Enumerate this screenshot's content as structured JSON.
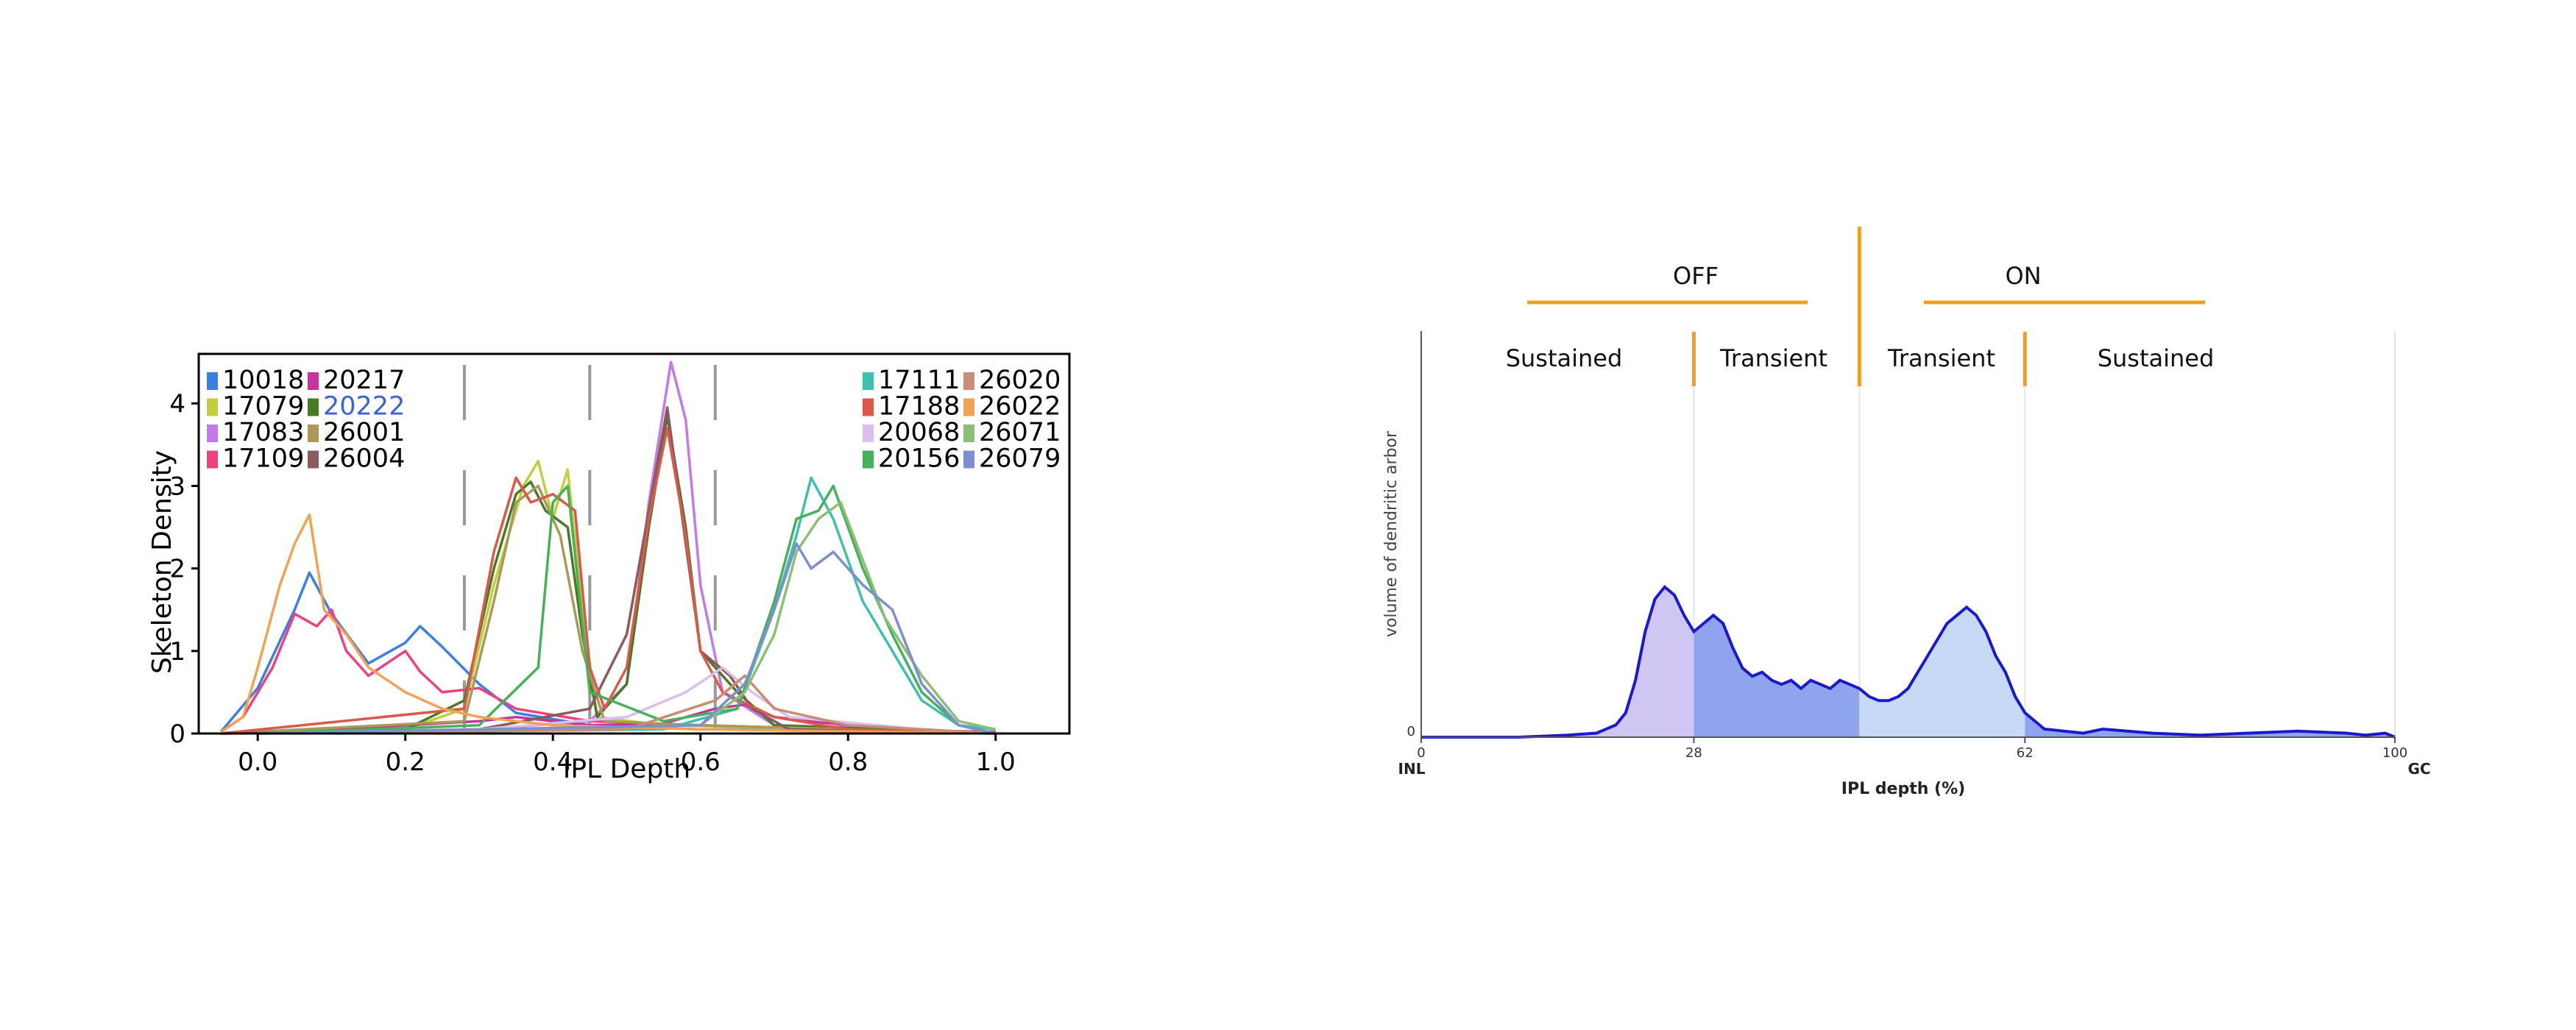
{
  "chart_data": [
    {
      "type": "line",
      "title": "",
      "xlabel": "IPL Depth",
      "ylabel": "Skeleton Density",
      "xlim": [
        -0.08,
        1.1
      ],
      "ylim": [
        0,
        4.6
      ],
      "xticks": [
        0.0,
        0.2,
        0.4,
        0.6,
        0.8,
        1.0
      ],
      "xtick_labels": [
        "0.0",
        "0.2",
        "0.4",
        "0.6",
        "0.8",
        "1.0"
      ],
      "yticks": [
        0,
        1,
        2,
        3,
        4
      ],
      "ytick_labels": [
        "0",
        "1",
        "2",
        "3",
        "4"
      ],
      "grid": false,
      "dashed_boundaries": [
        0.28,
        0.45,
        0.62
      ],
      "legend_left": [
        "10018",
        "17079",
        "17083",
        "17109",
        "20217",
        "20222",
        "26001",
        "26004"
      ],
      "legend_right": [
        "17111",
        "17188",
        "20068",
        "20156",
        "26020",
        "26022",
        "26071",
        "26079"
      ],
      "highlighted_entry": "20222",
      "series": [
        {
          "name": "10018",
          "color": "#3b7fe0",
          "values": [
            [
              -0.05,
              0.02
            ],
            [
              0.0,
              0.55
            ],
            [
              0.05,
              1.5
            ],
            [
              0.07,
              1.95
            ],
            [
              0.1,
              1.45
            ],
            [
              0.15,
              0.85
            ],
            [
              0.2,
              1.1
            ],
            [
              0.22,
              1.3
            ],
            [
              0.25,
              1.05
            ],
            [
              0.3,
              0.6
            ],
            [
              0.35,
              0.25
            ],
            [
              0.45,
              0.1
            ],
            [
              0.6,
              0.05
            ],
            [
              0.8,
              0.05
            ],
            [
              1.0,
              0.02
            ]
          ]
        },
        {
          "name": "17079",
          "color": "#c3cf3a",
          "values": [
            [
              -0.05,
              0
            ],
            [
              0.2,
              0.05
            ],
            [
              0.28,
              0.3
            ],
            [
              0.32,
              1.8
            ],
            [
              0.36,
              3.0
            ],
            [
              0.38,
              3.3
            ],
            [
              0.4,
              2.6
            ],
            [
              0.42,
              3.2
            ],
            [
              0.44,
              1.5
            ],
            [
              0.46,
              0.2
            ],
            [
              0.55,
              0.1
            ],
            [
              0.8,
              0.05
            ],
            [
              1.0,
              0
            ]
          ]
        },
        {
          "name": "17083",
          "color": "#c37ae8",
          "values": [
            [
              -0.05,
              0
            ],
            [
              0.3,
              0.05
            ],
            [
              0.45,
              0.15
            ],
            [
              0.5,
              0.6
            ],
            [
              0.53,
              2.8
            ],
            [
              0.56,
              4.5
            ],
            [
              0.58,
              3.8
            ],
            [
              0.6,
              1.8
            ],
            [
              0.63,
              0.5
            ],
            [
              0.7,
              0.1
            ],
            [
              0.9,
              0.05
            ],
            [
              1.0,
              0
            ]
          ]
        },
        {
          "name": "17109",
          "color": "#f0417f",
          "values": [
            [
              -0.05,
              0.02
            ],
            [
              -0.02,
              0.2
            ],
            [
              0.02,
              0.8
            ],
            [
              0.05,
              1.45
            ],
            [
              0.08,
              1.3
            ],
            [
              0.1,
              1.5
            ],
            [
              0.12,
              1.0
            ],
            [
              0.15,
              0.7
            ],
            [
              0.2,
              1.0
            ],
            [
              0.22,
              0.75
            ],
            [
              0.25,
              0.5
            ],
            [
              0.3,
              0.55
            ],
            [
              0.35,
              0.3
            ],
            [
              0.45,
              0.15
            ],
            [
              0.6,
              0.1
            ],
            [
              0.8,
              0.05
            ],
            [
              1.0,
              0.02
            ]
          ]
        },
        {
          "name": "20217",
          "color": "#c4369a",
          "values": [
            [
              0.0,
              0
            ],
            [
              0.3,
              0.15
            ],
            [
              0.35,
              0.2
            ],
            [
              0.45,
              0.1
            ],
            [
              0.55,
              0.12
            ],
            [
              0.62,
              0.3
            ],
            [
              0.66,
              0.35
            ],
            [
              0.7,
              0.2
            ],
            [
              0.8,
              0.1
            ],
            [
              1.0,
              0
            ]
          ]
        },
        {
          "name": "20222",
          "color": "#4a7a26",
          "values": [
            [
              -0.05,
              0
            ],
            [
              0.2,
              0.05
            ],
            [
              0.28,
              0.4
            ],
            [
              0.32,
              2.0
            ],
            [
              0.35,
              2.9
            ],
            [
              0.37,
              3.05
            ],
            [
              0.39,
              2.7
            ],
            [
              0.42,
              2.5
            ],
            [
              0.44,
              1.2
            ],
            [
              0.46,
              0.2
            ],
            [
              0.5,
              0.6
            ],
            [
              0.53,
              2.5
            ],
            [
              0.555,
              3.85
            ],
            [
              0.58,
              2.5
            ],
            [
              0.6,
              1.0
            ],
            [
              0.65,
              0.5
            ],
            [
              0.7,
              0.1
            ],
            [
              1.0,
              0
            ]
          ]
        },
        {
          "name": "26001",
          "color": "#a99a5a",
          "values": [
            [
              -0.05,
              0
            ],
            [
              0.28,
              0.15
            ],
            [
              0.32,
              1.6
            ],
            [
              0.35,
              2.8
            ],
            [
              0.38,
              3.0
            ],
            [
              0.41,
              2.4
            ],
            [
              0.44,
              1.0
            ],
            [
              0.47,
              0.15
            ],
            [
              0.6,
              0.1
            ],
            [
              1.0,
              0
            ]
          ]
        },
        {
          "name": "26004",
          "color": "#8a5a5c",
          "values": [
            [
              -0.05,
              0
            ],
            [
              0.3,
              0.05
            ],
            [
              0.45,
              0.3
            ],
            [
              0.5,
              1.2
            ],
            [
              0.53,
              2.7
            ],
            [
              0.555,
              3.95
            ],
            [
              0.58,
              2.3
            ],
            [
              0.6,
              1.0
            ],
            [
              0.64,
              0.7
            ],
            [
              0.67,
              0.3
            ],
            [
              0.72,
              0.05
            ],
            [
              1.0,
              0
            ]
          ]
        },
        {
          "name": "17111",
          "color": "#3fbfb0",
          "values": [
            [
              0.0,
              0
            ],
            [
              0.55,
              0.05
            ],
            [
              0.65,
              0.3
            ],
            [
              0.7,
              1.5
            ],
            [
              0.73,
              2.4
            ],
            [
              0.75,
              3.1
            ],
            [
              0.78,
              2.6
            ],
            [
              0.82,
              1.6
            ],
            [
              0.86,
              1.0
            ],
            [
              0.9,
              0.4
            ],
            [
              0.95,
              0.1
            ],
            [
              1.0,
              0.05
            ]
          ]
        },
        {
          "name": "17188",
          "color": "#d95a4a",
          "values": [
            [
              -0.05,
              0
            ],
            [
              0.28,
              0.3
            ],
            [
              0.32,
              2.2
            ],
            [
              0.35,
              3.1
            ],
            [
              0.37,
              2.8
            ],
            [
              0.4,
              2.9
            ],
            [
              0.43,
              2.7
            ],
            [
              0.45,
              0.8
            ],
            [
              0.47,
              0.3
            ],
            [
              0.5,
              0.8
            ],
            [
              0.53,
              2.6
            ],
            [
              0.555,
              3.7
            ],
            [
              0.58,
              2.4
            ],
            [
              0.6,
              1.0
            ],
            [
              0.63,
              0.5
            ],
            [
              0.7,
              0.2
            ],
            [
              0.8,
              0.05
            ],
            [
              1.0,
              0
            ]
          ]
        },
        {
          "name": "20068",
          "color": "#d9c0ee",
          "values": [
            [
              0.0,
              0
            ],
            [
              0.3,
              0.05
            ],
            [
              0.5,
              0.2
            ],
            [
              0.58,
              0.5
            ],
            [
              0.63,
              0.8
            ],
            [
              0.67,
              0.5
            ],
            [
              0.72,
              0.2
            ],
            [
              0.9,
              0.05
            ],
            [
              1.0,
              0
            ]
          ]
        },
        {
          "name": "20156",
          "color": "#47b05a",
          "values": [
            [
              0.0,
              0
            ],
            [
              0.3,
              0.1
            ],
            [
              0.38,
              0.8
            ],
            [
              0.4,
              2.8
            ],
            [
              0.42,
              3.0
            ],
            [
              0.45,
              0.5
            ],
            [
              0.55,
              0.15
            ],
            [
              0.65,
              0.3
            ],
            [
              0.7,
              1.6
            ],
            [
              0.73,
              2.6
            ],
            [
              0.76,
              2.7
            ],
            [
              0.78,
              3.0
            ],
            [
              0.82,
              2.0
            ],
            [
              0.86,
              1.2
            ],
            [
              0.9,
              0.5
            ],
            [
              0.95,
              0.1
            ],
            [
              1.0,
              0
            ]
          ]
        },
        {
          "name": "26020",
          "color": "#c98c74",
          "values": [
            [
              0.0,
              0
            ],
            [
              0.5,
              0.05
            ],
            [
              0.62,
              0.4
            ],
            [
              0.66,
              0.7
            ],
            [
              0.7,
              0.3
            ],
            [
              0.8,
              0.1
            ],
            [
              1.0,
              0
            ]
          ]
        },
        {
          "name": "26022",
          "color": "#f3a254",
          "values": [
            [
              -0.05,
              0.02
            ],
            [
              -0.02,
              0.2
            ],
            [
              0.0,
              0.8
            ],
            [
              0.03,
              1.8
            ],
            [
              0.05,
              2.3
            ],
            [
              0.07,
              2.65
            ],
            [
              0.09,
              1.5
            ],
            [
              0.12,
              1.2
            ],
            [
              0.15,
              0.8
            ],
            [
              0.2,
              0.5
            ],
            [
              0.25,
              0.3
            ],
            [
              0.3,
              0.2
            ],
            [
              0.4,
              0.1
            ],
            [
              0.6,
              0.05
            ],
            [
              1.0,
              0
            ]
          ]
        },
        {
          "name": "26071",
          "color": "#8cbf76",
          "values": [
            [
              0.0,
              0
            ],
            [
              0.6,
              0.1
            ],
            [
              0.66,
              0.5
            ],
            [
              0.7,
              1.2
            ],
            [
              0.73,
              2.2
            ],
            [
              0.76,
              2.6
            ],
            [
              0.79,
              2.8
            ],
            [
              0.82,
              2.1
            ],
            [
              0.85,
              1.4
            ],
            [
              0.9,
              0.7
            ],
            [
              0.95,
              0.15
            ],
            [
              1.0,
              0.05
            ]
          ]
        },
        {
          "name": "26079",
          "color": "#7e8fd0",
          "values": [
            [
              0.0,
              0
            ],
            [
              0.6,
              0.1
            ],
            [
              0.66,
              0.6
            ],
            [
              0.7,
              1.5
            ],
            [
              0.73,
              2.3
            ],
            [
              0.75,
              2.0
            ],
            [
              0.78,
              2.2
            ],
            [
              0.82,
              1.8
            ],
            [
              0.86,
              1.5
            ],
            [
              0.9,
              0.6
            ],
            [
              0.95,
              0.1
            ],
            [
              1.0,
              0
            ]
          ]
        }
      ]
    },
    {
      "type": "area",
      "title": "",
      "xlabel": "IPL depth (%)",
      "ylabel": "volume of dendritic arbor",
      "xlim": [
        0,
        100
      ],
      "ylim": [
        0,
        100
      ],
      "xticks": [
        0,
        28,
        62,
        100
      ],
      "xtick_labels": [
        "0",
        "28",
        "62",
        "100"
      ],
      "yticks": [
        0
      ],
      "ytick_labels": [
        "0"
      ],
      "end_labels": {
        "left": "INL",
        "right": "GC"
      },
      "region_boundaries": [
        28,
        45,
        62
      ],
      "top_labels": [
        "OFF",
        "ON"
      ],
      "sub_labels": [
        "Sustained",
        "Transient",
        "Transient",
        "Sustained"
      ],
      "colors": {
        "line": "#1a1acc",
        "bracket": "#f0a020",
        "fill_off_sustained": "#cfc6f4",
        "fill_off_transient": "#8fa3ef",
        "fill_on_transient": "#c6daf6",
        "fill_on_sustained": "#8fa3ef"
      },
      "x": [
        0,
        5,
        10,
        15,
        18,
        20,
        21,
        22,
        23,
        24,
        25,
        26,
        27,
        28,
        29,
        30,
        31,
        32,
        33,
        34,
        35,
        36,
        37,
        38,
        39,
        40,
        41,
        42,
        43,
        44,
        45,
        46,
        47,
        48,
        49,
        50,
        51,
        52,
        53,
        54,
        55,
        56,
        57,
        58,
        59,
        60,
        61,
        62,
        63,
        64,
        66,
        68,
        70,
        75,
        80,
        85,
        90,
        95,
        97,
        99,
        100
      ],
      "values": [
        0,
        0,
        0,
        0.5,
        1,
        3,
        6,
        14,
        26,
        34,
        37,
        35,
        30,
        26,
        28,
        30,
        28,
        22,
        17,
        15,
        16,
        14,
        13,
        14,
        12,
        14,
        13,
        12,
        14,
        13,
        12,
        10,
        9,
        9,
        10,
        12,
        16,
        20,
        24,
        28,
        30,
        32,
        30,
        26,
        20,
        16,
        10,
        6,
        4,
        2,
        1.5,
        1,
        2,
        1,
        0.5,
        1,
        1.5,
        1,
        0.5,
        1,
        0
      ]
    }
  ]
}
